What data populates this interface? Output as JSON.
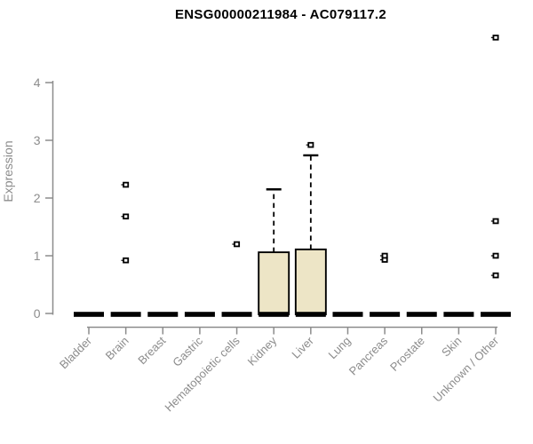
{
  "chart_data": {
    "type": "boxplot",
    "title": "ENSG00000211984 - AC079117.2",
    "ylabel": "Expression",
    "xlabel": "",
    "ylim": [
      0,
      4
    ],
    "yticks": [
      0,
      1,
      2,
      3,
      4
    ],
    "grid": false,
    "legend": "none",
    "categories": [
      "Bladder",
      "Brain",
      "Breast",
      "Gastric",
      "Hematopoietic cells",
      "Kidney",
      "Liver",
      "Lung",
      "Pancreas",
      "Prostate",
      "Skin",
      "Unknown / Other"
    ],
    "series": [
      {
        "category": "Bladder",
        "median": 0,
        "q1": 0,
        "q3": 0,
        "whisker_low": 0,
        "whisker_high": 0,
        "outliers": []
      },
      {
        "category": "Brain",
        "median": 0,
        "q1": 0,
        "q3": 0,
        "whisker_low": 0,
        "whisker_high": 0,
        "outliers": [
          0.92,
          1.68,
          2.23
        ]
      },
      {
        "category": "Breast",
        "median": 0,
        "q1": 0,
        "q3": 0,
        "whisker_low": 0,
        "whisker_high": 0,
        "outliers": []
      },
      {
        "category": "Gastric",
        "median": 0,
        "q1": 0,
        "q3": 0,
        "whisker_low": 0,
        "whisker_high": 0,
        "outliers": []
      },
      {
        "category": "Hematopoietic cells",
        "median": 0,
        "q1": 0,
        "q3": 0,
        "whisker_low": 0,
        "whisker_high": 0,
        "outliers": [
          1.2
        ]
      },
      {
        "category": "Kidney",
        "median": 0,
        "q1": 0,
        "q3": 1.06,
        "whisker_low": 0,
        "whisker_high": 2.15,
        "outliers": []
      },
      {
        "category": "Liver",
        "median": 0,
        "q1": 0,
        "q3": 1.11,
        "whisker_low": 0,
        "whisker_high": 2.74,
        "outliers": [
          2.92
        ]
      },
      {
        "category": "Lung",
        "median": 0,
        "q1": 0,
        "q3": 0,
        "whisker_low": 0,
        "whisker_high": 0,
        "outliers": []
      },
      {
        "category": "Pancreas",
        "median": 0,
        "q1": 0,
        "q3": 0,
        "whisker_low": 0,
        "whisker_high": 0,
        "outliers": [
          0.93,
          1.0
        ]
      },
      {
        "category": "Prostate",
        "median": 0,
        "q1": 0,
        "q3": 0,
        "whisker_low": 0,
        "whisker_high": 0,
        "outliers": []
      },
      {
        "category": "Skin",
        "median": 0,
        "q1": 0,
        "q3": 0,
        "whisker_low": 0,
        "whisker_high": 0,
        "outliers": []
      },
      {
        "category": "Unknown / Other",
        "median": 0,
        "q1": 0,
        "q3": 0,
        "whisker_low": 0,
        "whisker_high": 0,
        "outliers": [
          0.66,
          1.0,
          1.6,
          4.78
        ]
      }
    ],
    "colors": {
      "box_fill": "#ede5c6",
      "box_border": "#000000",
      "median": "#000000",
      "outlier_fill": "#ffffff",
      "axis": "#8c8c8c",
      "title": "#000000",
      "background": "#ffffff"
    }
  }
}
